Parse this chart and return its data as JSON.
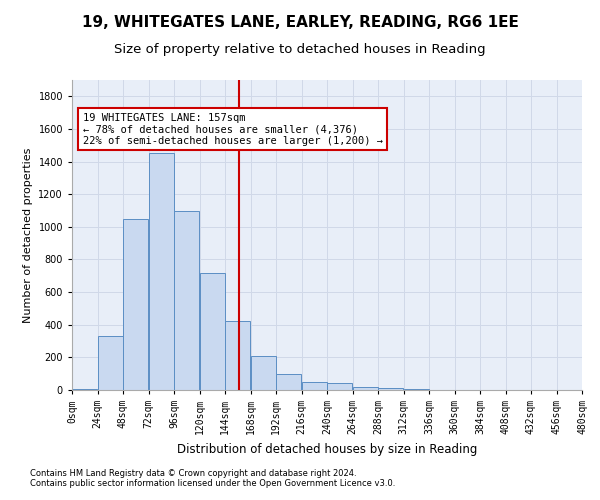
{
  "title": "19, WHITEGATES LANE, EARLEY, READING, RG6 1EE",
  "subtitle": "Size of property relative to detached houses in Reading",
  "xlabel": "Distribution of detached houses by size in Reading",
  "ylabel": "Number of detached properties",
  "footnote1": "Contains HM Land Registry data © Crown copyright and database right 2024.",
  "footnote2": "Contains public sector information licensed under the Open Government Licence v3.0.",
  "bin_labels": [
    "0sqm",
    "24sqm",
    "48sqm",
    "72sqm",
    "96sqm",
    "120sqm",
    "144sqm",
    "168sqm",
    "192sqm",
    "216sqm",
    "240sqm",
    "264sqm",
    "288sqm",
    "312sqm",
    "336sqm",
    "360sqm",
    "384sqm",
    "408sqm",
    "432sqm",
    "456sqm",
    "480sqm"
  ],
  "bar_values": [
    5,
    330,
    1050,
    1450,
    1100,
    720,
    425,
    210,
    100,
    50,
    40,
    20,
    15,
    5,
    3,
    2,
    1,
    0,
    0,
    0
  ],
  "bin_edges": [
    0,
    24,
    48,
    72,
    96,
    120,
    144,
    168,
    192,
    216,
    240,
    264,
    288,
    312,
    336,
    360,
    384,
    408,
    432,
    456,
    480
  ],
  "property_size": 157,
  "bar_facecolor": "#c9d9f0",
  "bar_edgecolor": "#5b8ec4",
  "vline_color": "#cc0000",
  "vline_x": 157,
  "annotation_line1": "19 WHITEGATES LANE: 157sqm",
  "annotation_line2": "← 78% of detached houses are smaller (4,376)",
  "annotation_line3": "22% of semi-detached houses are larger (1,200) →",
  "annotation_box_edgecolor": "#cc0000",
  "annotation_box_facecolor": "#ffffff",
  "ylim": [
    0,
    1900
  ],
  "yticks": [
    0,
    200,
    400,
    600,
    800,
    1000,
    1200,
    1400,
    1600,
    1800
  ],
  "grid_color": "#d0d8e8",
  "bg_color": "#e8eef8",
  "title_fontsize": 11,
  "subtitle_fontsize": 9.5,
  "xlabel_fontsize": 8.5,
  "ylabel_fontsize": 8,
  "tick_fontsize": 7,
  "annot_fontsize": 7.5,
  "footnote_fontsize": 6
}
